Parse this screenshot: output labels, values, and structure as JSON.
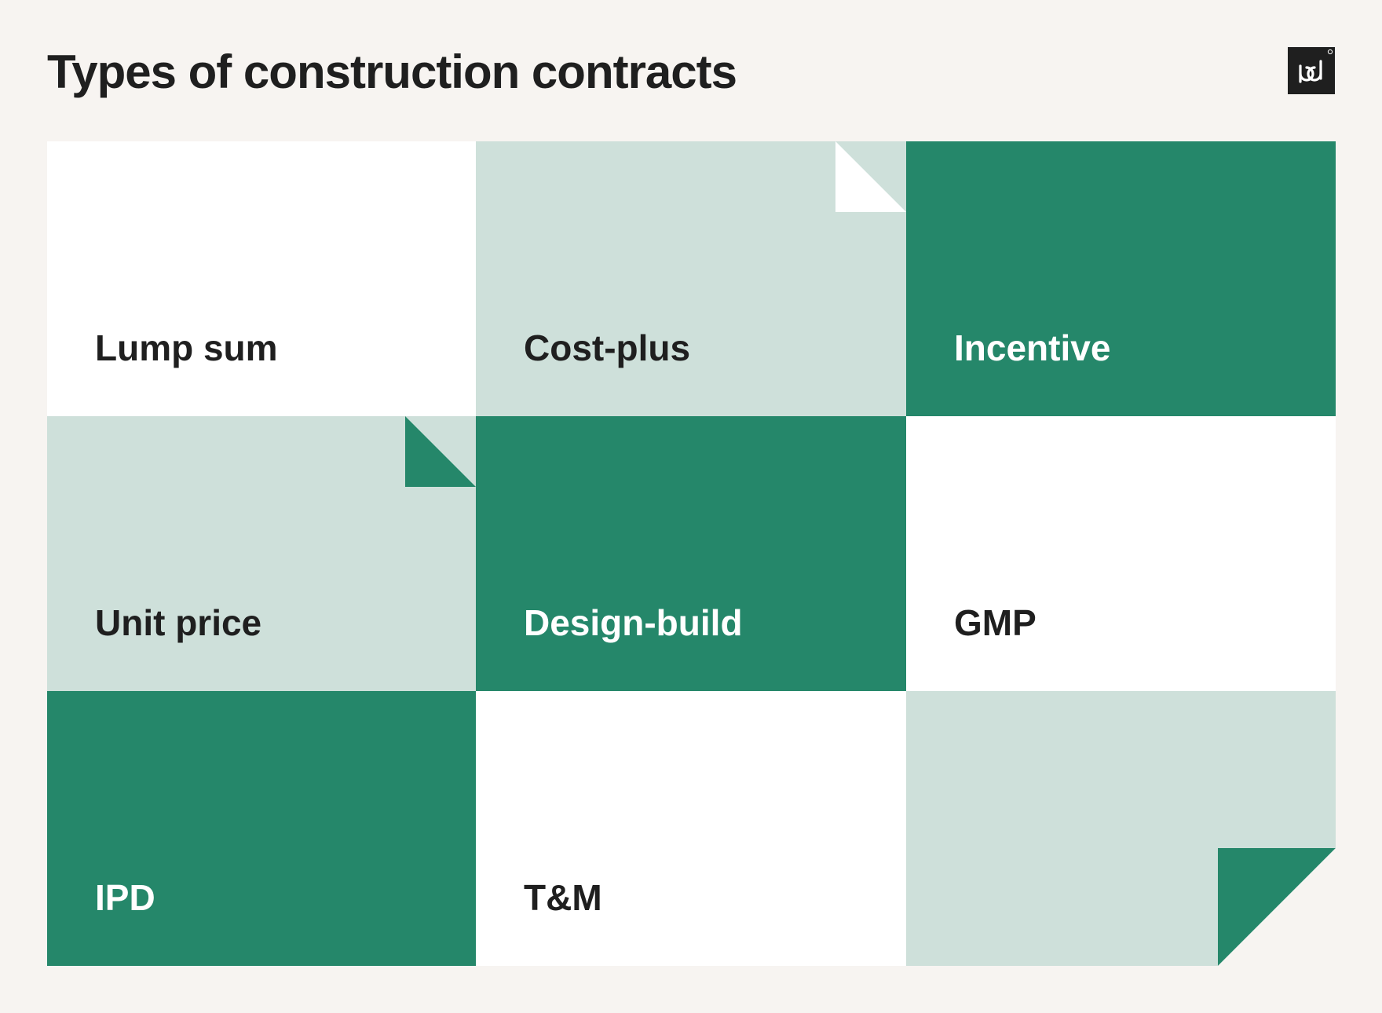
{
  "title": "Types of construction contracts",
  "logo": {
    "icon": "pd-logo-icon",
    "background": "#1f1f1f"
  },
  "colors": {
    "background": "#f7f4f1",
    "green": "#25876a",
    "light": "#cee0da",
    "white": "#ffffff",
    "dark_text": "#1f1f1f",
    "light_text": "#ffffff"
  },
  "tiles": [
    {
      "label": "Lump sum",
      "fill": "white"
    },
    {
      "label": "Cost-plus",
      "fill": "light"
    },
    {
      "label": "Incentive",
      "fill": "green"
    },
    {
      "label": "Unit price",
      "fill": "light"
    },
    {
      "label": "Design-build",
      "fill": "green"
    },
    {
      "label": "GMP",
      "fill": "white"
    },
    {
      "label": "IPD",
      "fill": "green"
    },
    {
      "label": "T&M",
      "fill": "white"
    },
    {
      "label": "",
      "fill": "light"
    }
  ]
}
